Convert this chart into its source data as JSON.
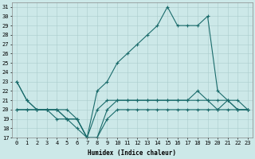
{
  "xlabel": "Humidex (Indice chaleur)",
  "x": [
    0,
    1,
    2,
    3,
    4,
    5,
    6,
    7,
    8,
    9,
    10,
    11,
    12,
    13,
    14,
    15,
    16,
    17,
    18,
    19,
    20,
    21,
    22,
    23
  ],
  "line1": [
    23,
    21,
    20,
    20,
    20,
    19,
    19,
    17,
    17,
    20,
    21,
    21,
    21,
    21,
    21,
    21,
    21,
    21,
    21,
    21,
    21,
    21,
    20,
    20
  ],
  "line2": [
    20,
    20,
    20,
    20,
    19,
    19,
    18,
    17,
    17,
    19,
    20,
    20,
    20,
    20,
    20,
    20,
    20,
    20,
    20,
    20,
    20,
    20,
    20,
    20
  ],
  "line3": [
    20,
    20,
    20,
    20,
    20,
    20,
    19,
    17,
    20,
    21,
    21,
    21,
    21,
    21,
    21,
    21,
    21,
    21,
    22,
    21,
    20,
    21,
    21,
    20
  ],
  "line4": [
    23,
    21,
    20,
    20,
    20,
    19,
    19,
    17,
    22,
    23,
    25,
    26,
    27,
    28,
    29,
    31,
    29,
    29,
    29,
    30,
    22,
    21,
    20,
    20
  ],
  "bg_color": "#cce8e8",
  "line_color": "#1a6b6b",
  "grid_color": "#aacccc",
  "label_fontsize": 5.5,
  "tick_fontsize": 5
}
